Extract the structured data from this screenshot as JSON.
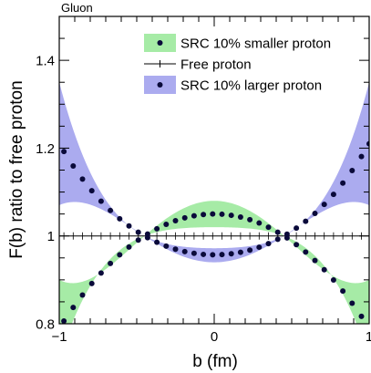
{
  "chart_data": {
    "type": "line",
    "panel_label": "Gluon",
    "xlabel": "b (fm)",
    "ylabel": "F(b) ratio to free proton",
    "xlim": [
      -1,
      1
    ],
    "ylim": [
      0.8,
      1.5
    ],
    "xticks": [
      -1,
      0,
      1
    ],
    "yticks": [
      0.8,
      1,
      1.2,
      1.4
    ],
    "ytick_labels": [
      "0.8",
      "1",
      "1.2",
      "1.4"
    ],
    "xtick_labels": [
      "−1",
      "0",
      "1"
    ],
    "legend_position": "top-right",
    "legend": {
      "smaller": "SRC 10% smaller proton",
      "free": "Free proton",
      "larger": "SRC 10% larger proton"
    },
    "colors": {
      "smaller_band": "#a6eba6",
      "larger_band": "#ababef",
      "points": "#0a0a3a",
      "free_line": "#000000"
    },
    "node_b": 0.45,
    "series": [
      {
        "key": "smaller",
        "name": "SRC 10% smaller proton",
        "center_at_b0": 1.05,
        "band_upper_at_b0": 1.08,
        "band_lower_at_b0": 1.02,
        "center_at_b1": 0.79,
        "band_upper_at_b1": 0.9,
        "band_lower_at_b1": 0.72
      },
      {
        "key": "larger",
        "name": "SRC 10% larger proton",
        "center_at_b0": 0.957,
        "band_upper_at_b0": 0.972,
        "band_lower_at_b0": 0.94,
        "center_at_b1": 1.21,
        "band_upper_at_b1": 1.35,
        "band_lower_at_b1": 1.07
      },
      {
        "key": "free",
        "name": "Free proton",
        "value": 1.0
      }
    ],
    "point_b": [
      -0.97,
      -0.91,
      -0.85,
      -0.79,
      -0.73,
      -0.67,
      -0.61,
      -0.55,
      -0.49,
      -0.43,
      -0.37,
      -0.31,
      -0.25,
      -0.19,
      -0.13,
      -0.07,
      -0.01,
      0.05,
      0.11,
      0.17,
      0.23,
      0.29,
      0.35,
      0.41,
      0.47,
      0.53,
      0.59,
      0.65,
      0.71,
      0.77,
      0.83,
      0.89,
      0.95,
      1.0
    ]
  }
}
